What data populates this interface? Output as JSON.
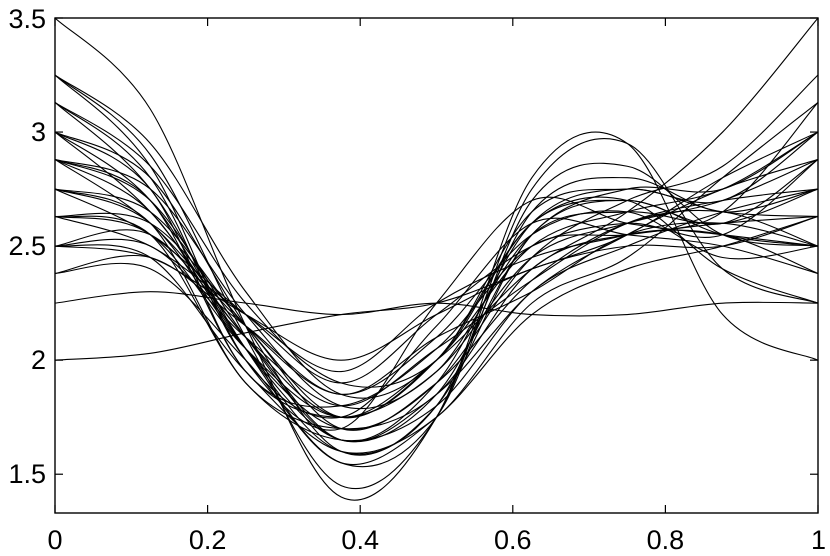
{
  "chart_data": {
    "type": "line",
    "title": "",
    "xlabel": "",
    "ylabel": "",
    "xlim": [
      0,
      1
    ],
    "ylim": [
      1.33,
      3.5
    ],
    "grid": false,
    "legend": "none",
    "line_color": "#000000",
    "x_ticks": [
      {
        "value": 0,
        "label": "0"
      },
      {
        "value": 0.2,
        "label": "0.2"
      },
      {
        "value": 0.4,
        "label": "0.4"
      },
      {
        "value": 0.6,
        "label": "0.6"
      },
      {
        "value": 0.8,
        "label": "0.8"
      },
      {
        "value": 1,
        "label": "1"
      }
    ],
    "y_ticks": [
      {
        "value": 1.5,
        "label": "1.5"
      },
      {
        "value": 2,
        "label": "2"
      },
      {
        "value": 2.5,
        "label": "2.5"
      },
      {
        "value": 3,
        "label": "3"
      },
      {
        "value": 3.5,
        "label": "3.5"
      }
    ],
    "x": [
      0,
      0.125,
      0.25,
      0.375,
      0.5,
      0.625,
      0.75,
      0.875,
      1
    ],
    "series": [
      {
        "values": [
          3.5,
          3.1,
          2.15,
          1.4,
          1.75,
          2.8,
          2.95,
          2.2,
          2.0
        ]
      },
      {
        "values": [
          3.25,
          2.9,
          2.1,
          1.45,
          1.75,
          2.75,
          2.95,
          2.4,
          2.25
        ]
      },
      {
        "values": [
          3.13,
          2.75,
          2.05,
          1.55,
          1.75,
          2.7,
          2.85,
          2.55,
          2.5
        ]
      },
      {
        "values": [
          3.0,
          2.7,
          2.05,
          1.6,
          1.8,
          2.65,
          2.8,
          2.65,
          2.75
        ]
      },
      {
        "values": [
          2.88,
          2.65,
          2.05,
          1.65,
          1.85,
          2.55,
          2.75,
          2.75,
          3.0
        ]
      },
      {
        "values": [
          2.75,
          2.6,
          2.05,
          1.7,
          1.9,
          2.45,
          2.7,
          2.85,
          3.25
        ]
      },
      {
        "values": [
          2.63,
          2.55,
          2.05,
          1.75,
          2.0,
          2.4,
          2.65,
          3.0,
          3.5
        ]
      },
      {
        "values": [
          2.5,
          2.5,
          2.1,
          1.8,
          2.05,
          2.35,
          2.6,
          2.7,
          2.75
        ]
      },
      {
        "values": [
          2.38,
          2.45,
          2.15,
          1.85,
          2.1,
          2.3,
          2.55,
          2.6,
          2.5
        ]
      },
      {
        "values": [
          2.25,
          2.3,
          2.25,
          2.2,
          2.25,
          2.2,
          2.2,
          2.25,
          2.25
        ]
      },
      {
        "values": [
          2.0,
          2.03,
          2.12,
          2.2,
          2.25,
          2.4,
          2.55,
          2.8,
          3.0
        ]
      },
      {
        "values": [
          3.25,
          2.85,
          2.0,
          1.7,
          2.25,
          2.7,
          2.6,
          2.55,
          2.5
        ]
      },
      {
        "values": [
          3.13,
          2.8,
          2.0,
          1.75,
          2.15,
          2.6,
          2.55,
          2.5,
          2.38
        ]
      },
      {
        "values": [
          3.0,
          2.75,
          1.95,
          1.8,
          2.05,
          2.5,
          2.55,
          2.6,
          2.63
        ]
      },
      {
        "values": [
          2.88,
          2.7,
          1.95,
          1.75,
          1.95,
          2.45,
          2.6,
          2.7,
          2.88
        ]
      },
      {
        "values": [
          2.75,
          2.6,
          1.9,
          1.7,
          1.85,
          2.4,
          2.55,
          2.55,
          2.38
        ]
      },
      {
        "values": [
          2.63,
          2.55,
          1.9,
          1.65,
          1.8,
          2.3,
          2.5,
          2.65,
          2.75
        ]
      },
      {
        "values": [
          2.5,
          2.45,
          1.95,
          1.6,
          1.75,
          2.25,
          2.45,
          2.8,
          3.13
        ]
      },
      {
        "values": [
          2.38,
          2.4,
          2.0,
          1.55,
          1.75,
          2.2,
          2.4,
          2.5,
          2.63
        ]
      },
      {
        "values": [
          3.0,
          2.65,
          2.1,
          1.75,
          2.0,
          2.6,
          2.7,
          2.4,
          2.25
        ]
      },
      {
        "values": [
          2.88,
          2.6,
          2.15,
          1.85,
          2.1,
          2.55,
          2.65,
          2.45,
          2.5
        ]
      },
      {
        "values": [
          2.75,
          2.55,
          2.2,
          1.9,
          2.2,
          2.5,
          2.6,
          2.55,
          2.88
        ]
      },
      {
        "values": [
          2.63,
          2.5,
          2.2,
          1.95,
          2.25,
          2.45,
          2.55,
          2.65,
          3.13
        ]
      },
      {
        "values": [
          2.5,
          2.45,
          2.2,
          2.0,
          2.2,
          2.4,
          2.5,
          2.5,
          2.63
        ]
      },
      {
        "values": [
          3.25,
          2.95,
          2.3,
          1.85,
          2.0,
          2.65,
          2.75,
          2.7,
          3.0
        ]
      },
      {
        "values": [
          3.13,
          2.85,
          2.25,
          1.9,
          2.0,
          2.6,
          2.7,
          2.6,
          2.88
        ]
      },
      {
        "values": [
          2.88,
          2.75,
          2.2,
          1.8,
          1.95,
          2.55,
          2.65,
          2.6,
          2.75
        ]
      },
      {
        "values": [
          2.75,
          2.65,
          2.15,
          1.75,
          2.0,
          2.5,
          2.65,
          2.75,
          3.0
        ]
      },
      {
        "values": [
          2.63,
          2.6,
          2.15,
          1.7,
          1.9,
          2.35,
          2.6,
          2.65,
          2.5
        ]
      },
      {
        "values": [
          2.5,
          2.55,
          2.1,
          1.65,
          1.85,
          2.3,
          2.55,
          2.75,
          2.88
        ]
      },
      {
        "values": [
          3.0,
          2.8,
          2.15,
          1.6,
          1.8,
          2.55,
          2.7,
          2.55,
          2.5
        ]
      },
      {
        "values": [
          2.88,
          2.7,
          2.1,
          1.65,
          1.9,
          2.6,
          2.75,
          2.65,
          2.63
        ]
      }
    ]
  }
}
